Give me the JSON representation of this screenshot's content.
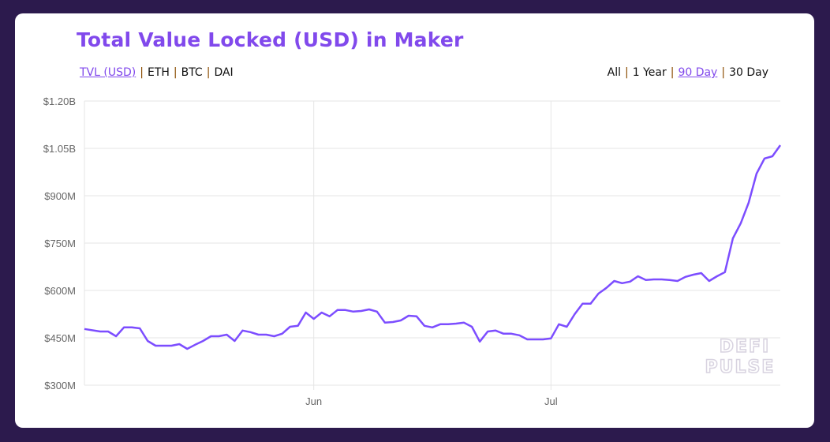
{
  "title": "Total Value Locked (USD) in Maker",
  "metric_tabs": [
    {
      "label": "TVL (USD)",
      "selected": true
    },
    {
      "label": "ETH",
      "selected": false
    },
    {
      "label": "BTC",
      "selected": false
    },
    {
      "label": "DAI",
      "selected": false
    }
  ],
  "range_tabs": [
    {
      "label": "All",
      "selected": false
    },
    {
      "label": "1 Year",
      "selected": false
    },
    {
      "label": "90 Day",
      "selected": true
    },
    {
      "label": "30 Day",
      "selected": false
    }
  ],
  "separator": "|",
  "watermark": [
    "DEFI",
    "PULSE"
  ],
  "colors": {
    "background": "#2c1a4d",
    "accent": "#8149ec",
    "line": "#7c4dff",
    "grid": "#e6e6e6"
  },
  "chart_data": {
    "type": "line",
    "title": "Total Value Locked (USD) in Maker",
    "xlabel": "",
    "ylabel": "",
    "ylim": [
      300,
      1200
    ],
    "yunit": "M USD",
    "yticks": [
      300,
      450,
      600,
      750,
      900,
      1050,
      1200
    ],
    "ytick_labels": [
      "$300M",
      "$450M",
      "$600M",
      "$750M",
      "$900M",
      "$1.05B",
      "$1.20B"
    ],
    "xticks": [
      "2020-06-01",
      "2020-07-01"
    ],
    "xtick_labels": [
      "Jun",
      "Jul"
    ],
    "grid": true,
    "legend": "none",
    "x": [
      "2020-05-03",
      "2020-05-05",
      "2020-05-06",
      "2020-05-07",
      "2020-05-08",
      "2020-05-09",
      "2020-05-10",
      "2020-05-11",
      "2020-05-12",
      "2020-05-13",
      "2020-05-14",
      "2020-05-15",
      "2020-05-16",
      "2020-05-17",
      "2020-05-18",
      "2020-05-19",
      "2020-05-20",
      "2020-05-21",
      "2020-05-22",
      "2020-05-23",
      "2020-05-24",
      "2020-05-25",
      "2020-05-26",
      "2020-05-27",
      "2020-05-28",
      "2020-05-29",
      "2020-05-30",
      "2020-05-31",
      "2020-06-01",
      "2020-06-02",
      "2020-06-03",
      "2020-06-04",
      "2020-06-05",
      "2020-06-06",
      "2020-06-07",
      "2020-06-08",
      "2020-06-09",
      "2020-06-10",
      "2020-06-11",
      "2020-06-12",
      "2020-06-13",
      "2020-06-14",
      "2020-06-15",
      "2020-06-16",
      "2020-06-17",
      "2020-06-18",
      "2020-06-19",
      "2020-06-20",
      "2020-06-21",
      "2020-06-22",
      "2020-06-23",
      "2020-06-24",
      "2020-06-25",
      "2020-06-26",
      "2020-06-27",
      "2020-06-28",
      "2020-06-29",
      "2020-06-30",
      "2020-07-01",
      "2020-07-02",
      "2020-07-03",
      "2020-07-04",
      "2020-07-05",
      "2020-07-06",
      "2020-07-07",
      "2020-07-08",
      "2020-07-09",
      "2020-07-10",
      "2020-07-11",
      "2020-07-12",
      "2020-07-13",
      "2020-07-14",
      "2020-07-15",
      "2020-07-16",
      "2020-07-17",
      "2020-07-18",
      "2020-07-19",
      "2020-07-20",
      "2020-07-21",
      "2020-07-22",
      "2020-07-23",
      "2020-07-24",
      "2020-07-25",
      "2020-07-26",
      "2020-07-27",
      "2020-07-28",
      "2020-07-29",
      "2020-07-30"
    ],
    "series": [
      {
        "values": [
          478,
          470,
          470,
          455,
          483,
          483,
          480,
          440,
          425,
          425,
          425,
          430,
          415,
          428,
          440,
          455,
          455,
          460,
          440,
          473,
          468,
          460,
          460,
          455,
          463,
          485,
          488,
          530,
          510,
          530,
          518,
          538,
          538,
          533,
          535,
          540,
          533,
          498,
          500,
          505,
          520,
          518,
          488,
          483,
          493,
          493,
          495,
          498,
          485,
          438,
          470,
          473,
          463,
          463,
          458,
          445,
          445,
          445,
          448,
          493,
          485,
          525,
          558,
          558,
          590,
          608,
          630,
          623,
          628,
          645,
          633,
          635,
          635,
          633,
          630,
          643,
          650,
          655,
          630,
          645,
          658,
          765,
          813,
          878,
          970,
          1018,
          1025,
          1060
        ]
      }
    ]
  }
}
